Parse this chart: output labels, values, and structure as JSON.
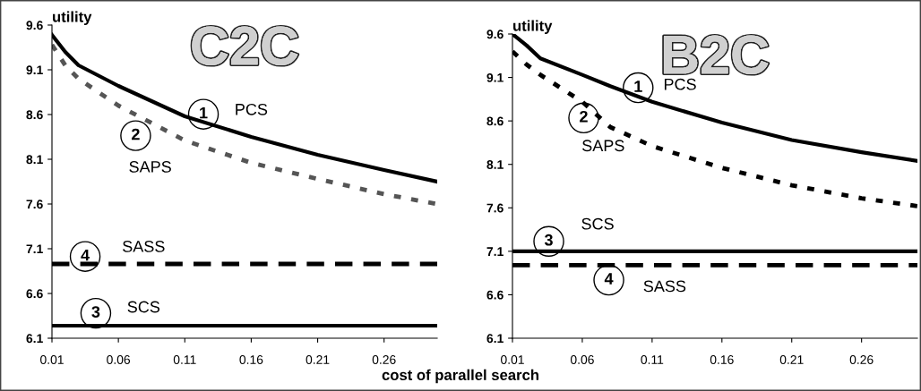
{
  "chart_data": [
    {
      "type": "line",
      "title": "C2C",
      "ylabel": "utility",
      "xlabel": "cost of parallel search",
      "x": [
        0.01,
        0.02,
        0.03,
        0.06,
        0.11,
        0.16,
        0.21,
        0.26,
        0.3
      ],
      "series": [
        {
          "color": "#000000",
          "line_style": "solid",
          "values": [
            9.49,
            9.3,
            9.15,
            8.92,
            8.58,
            8.35,
            8.15,
            7.98,
            7.85
          ]
        },
        {
          "color": "#555555",
          "line_style": "dashed",
          "values": [
            9.38,
            9.15,
            9.0,
            8.7,
            8.31,
            8.06,
            7.88,
            7.71,
            7.6
          ]
        },
        {
          "color": "#000000",
          "line_style": "solid",
          "values": [
            6.24,
            6.24,
            6.24,
            6.24,
            6.24,
            6.24,
            6.24,
            6.24,
            6.24
          ]
        },
        {
          "color": "#000000",
          "line_style": "dashed",
          "values": [
            6.93,
            6.93,
            6.93,
            6.93,
            6.93,
            6.93,
            6.93,
            6.93,
            6.93
          ]
        }
      ],
      "annotations": [
        {
          "text": "1",
          "x": 0.124,
          "y": 8.52
        },
        {
          "text": "PCS",
          "x": 0.16,
          "y": 8.35
        },
        {
          "text": "2",
          "x": 0.073,
          "y": 8.6
        },
        "SAPS",
        {
          "text": "3",
          "x": 0.043,
          "y": 6.24
        },
        {
          "text": "SCS",
          "x": 0.079,
          "y": 6.24
        },
        {
          "text": "4",
          "x": 0.035,
          "y": 6.93
        },
        {
          "text": "SASS",
          "x": 0.079,
          "y": 6.93
        }
      ],
      "xlim": [
        0.01,
        0.3
      ],
      "xticks": [
        0.01,
        0.06,
        0.11,
        0.16,
        0.21,
        0.26
      ],
      "ylim": [
        6.1,
        9.6
      ],
      "yticks": [
        6.1,
        6.6,
        7.1,
        7.6,
        8.1,
        8.6,
        9.1,
        9.6
      ],
      "grid": false,
      "marker": "none"
    },
    {
      "type": "line",
      "title": "B2C",
      "ylabel": "utility",
      "x": [
        0.01,
        0.02,
        0.03,
        0.06,
        0.08,
        0.11,
        0.16,
        0.21,
        0.26,
        0.3
      ],
      "series": [
        {
          "color": "#000000",
          "line_style": "solid",
          "values": [
            9.6,
            9.47,
            9.32,
            9.13,
            9.0,
            8.82,
            8.58,
            8.38,
            8.24,
            8.14
          ]
        },
        {
          "color": "#000000",
          "line_style": "dashed",
          "values": [
            9.4,
            9.25,
            9.13,
            8.82,
            8.53,
            8.31,
            8.06,
            7.86,
            7.71,
            7.62
          ]
        },
        {
          "color": "#000000",
          "line_style": "solid",
          "values": [
            7.1,
            7.1,
            7.1,
            7.1,
            7.1,
            7.1,
            7.1,
            7.1,
            7.1,
            7.1
          ]
        },
        {
          "color": "#000000",
          "line_style": "dashed",
          "values": [
            6.94,
            6.94,
            6.94,
            6.94,
            6.94,
            6.94,
            6.94,
            6.94,
            6.94,
            6.94
          ]
        }
      ],
      "annotations": [
        {
          "text": "1",
          "x": 0.1,
          "y": 8.91
        },
        {
          "text": "PCS",
          "x": 0.13,
          "y": 8.72
        },
        {
          "text": "2",
          "x": 0.061,
          "y": 8.82
        },
        {
          "text": "SAPS",
          "x": 0.075,
          "y": 8.6
        },
        {
          "text": "3",
          "x": 0.036,
          "y": 7.1
        },
        {
          "text": "SCS",
          "x": 0.071,
          "y": 7.1
        },
        {
          "text": "4",
          "x": 0.079,
          "y": 6.94
        },
        {
          "text": "SASS",
          "x": 0.119,
          "y": 6.94
        }
      ],
      "xlim": [
        0.01,
        0.3
      ],
      "xticks": [
        0.01,
        0.06,
        0.11,
        0.16,
        0.21,
        0.26
      ],
      "ylim": [
        6.1,
        9.6
      ],
      "yticks": [
        6.1,
        6.6,
        7.1,
        7.6,
        8.1,
        8.6,
        9.1,
        9.6
      ],
      "grid": false,
      "marker": "none"
    }
  ]
}
